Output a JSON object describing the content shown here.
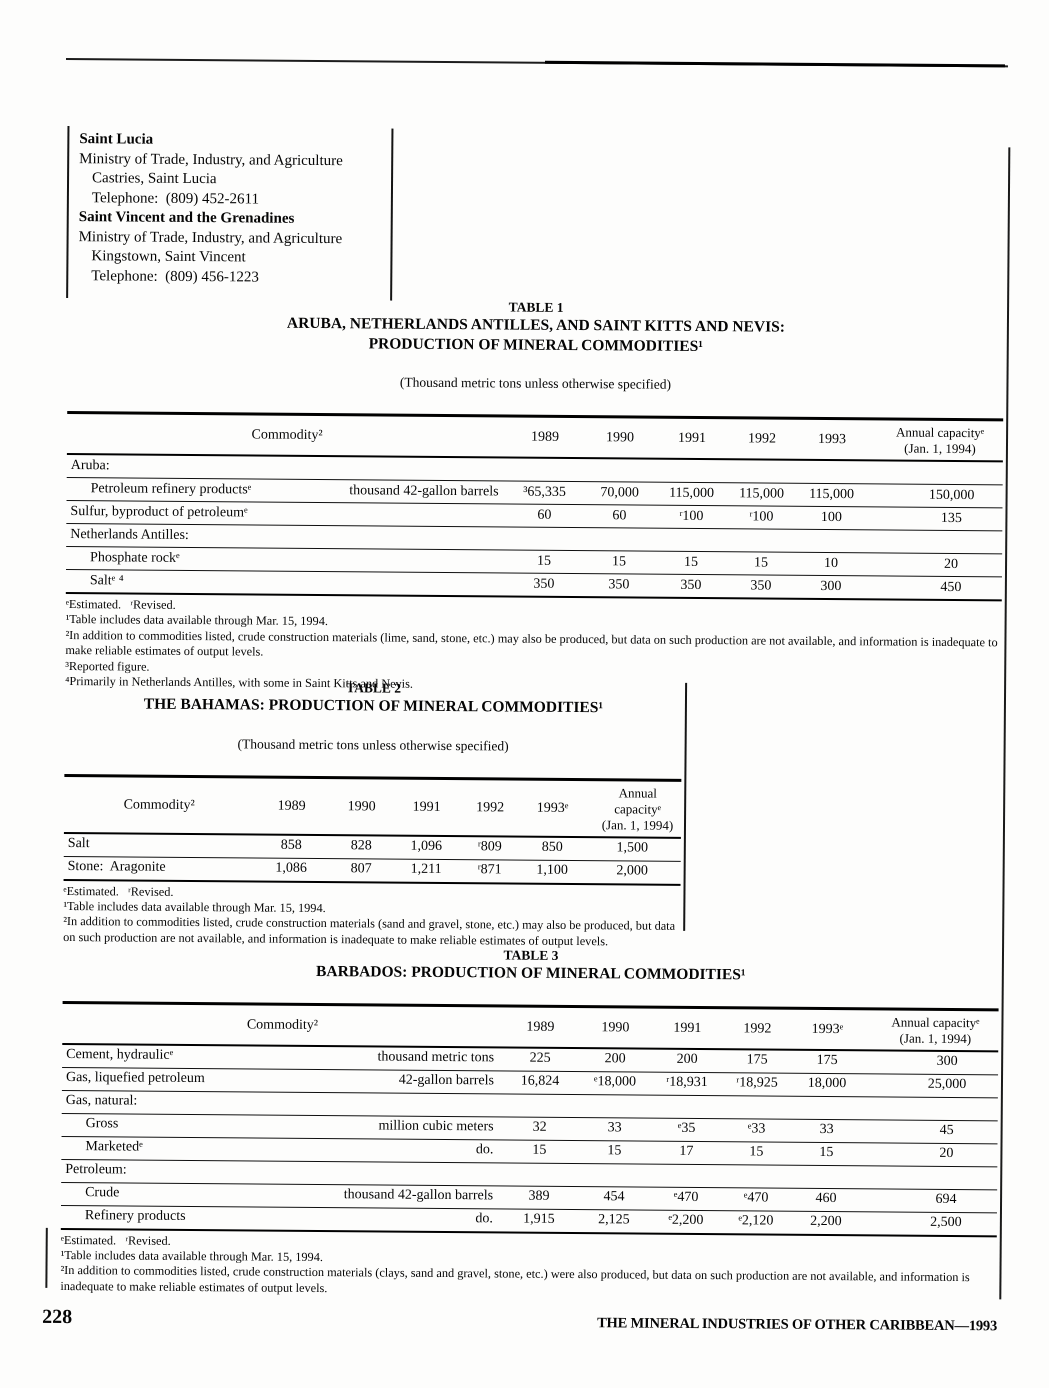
{
  "contacts": {
    "entries": [
      {
        "name": "Saint Lucia",
        "org": "Ministry of Trade, Industry, and Agriculture",
        "addr": "Castries, Saint Lucia",
        "phone": "Telephone:  (809) 452-2611"
      },
      {
        "name": "Saint Vincent and the Grenadines",
        "org": "Ministry of Trade, Industry, and Agriculture",
        "addr": "Kingstown, Saint Vincent",
        "phone": "Telephone:  (809) 456-1223"
      }
    ]
  },
  "table1": {
    "caption": "TABLE 1",
    "title_line1": "ARUBA, NETHERLANDS ANTILLES, AND SAINT KITTS AND NEVIS:",
    "title_line2": "PRODUCTION OF MINERAL COMMODITIES¹",
    "subtitle": "(Thousand metric tons unless otherwise specified)",
    "header": {
      "commodity": "Commodity²",
      "years": [
        "1989",
        "1990",
        "1991",
        "1992",
        "1993"
      ],
      "capacity_line1": "Annual capacityᵉ",
      "capacity_line2": "(Jan. 1, 1994)"
    },
    "rows": [
      {
        "label": "Aruba:",
        "unit": "",
        "values": [
          "",
          "",
          "",
          "",
          "",
          ""
        ]
      },
      {
        "label": "Petroleum refinery productsᵉ",
        "unit": "thousand 42-gallon barrels",
        "values": [
          "³65,335",
          "70,000",
          "115,000",
          "115,000",
          "115,000",
          "150,000"
        ]
      },
      {
        "label": "Sulfur, byproduct of petroleumᵉ",
        "unit": "",
        "values": [
          "60",
          "60",
          "ʳ100",
          "ʳ100",
          "100",
          "135"
        ]
      },
      {
        "label": "Netherlands Antilles:",
        "unit": "",
        "values": [
          "",
          "",
          "",
          "",
          "",
          ""
        ]
      },
      {
        "label": "Phosphate rockᵉ",
        "unit": "",
        "values": [
          "15",
          "15",
          "15",
          "15",
          "10",
          "20"
        ]
      },
      {
        "label": "Saltᵉ ⁴",
        "unit": "",
        "values": [
          "350",
          "350",
          "350",
          "350",
          "300",
          "450"
        ]
      }
    ],
    "footnotes": [
      "ᵉEstimated.   ʳRevised.",
      "¹Table includes data available through Mar. 15, 1994.",
      "²In addition to commodities listed, crude construction materials (lime, sand, stone, etc.) may also be produced, but data on such production are not available, and information is inadequate to make reliable estimates of output levels.",
      "³Reported figure.",
      "⁴Primarily in Netherlands Antilles, with some in Saint Kitts and Nevis."
    ]
  },
  "table2": {
    "caption": "TABLE 2",
    "title_line1": "THE BAHAMAS: PRODUCTION OF MINERAL COMMODITIES¹",
    "subtitle": "(Thousand metric tons unless otherwise specified)",
    "header": {
      "commodity": "Commodity²",
      "years": [
        "1989",
        "1990",
        "1991",
        "1992",
        "1993ᵉ"
      ],
      "capacity_line1": "Annual capacityᵉ",
      "capacity_line2": "(Jan. 1, 1994)"
    },
    "rows": [
      {
        "label": "Salt",
        "values": [
          "858",
          "828",
          "1,096",
          "ʳ809",
          "850",
          "1,500"
        ]
      },
      {
        "label": "Stone:  Aragonite",
        "values": [
          "1,086",
          "807",
          "1,211",
          "ʳ871",
          "1,100",
          "2,000"
        ]
      }
    ],
    "footnotes": [
      "ᵉEstimated.   ʳRevised.",
      "¹Table includes data available through Mar. 15, 1994.",
      "²In addition to commodities listed, crude construction materials (sand and gravel, stone, etc.) may also be produced, but data on such production are not available, and information is inadequate to make reliable estimates of output levels."
    ]
  },
  "table3": {
    "caption": "TABLE 3",
    "title_line1": "BARBADOS:  PRODUCTION OF MINERAL COMMODITIES¹",
    "header": {
      "commodity": "Commodity²",
      "years": [
        "1989",
        "1990",
        "1991",
        "1992",
        "1993ᵉ"
      ],
      "capacity_line1": "Annual capacityᵉ",
      "capacity_line2": "(Jan. 1, 1994)"
    },
    "rows": [
      {
        "label": "Cement, hydraulicᵉ",
        "unit": "thousand metric tons",
        "values": [
          "225",
          "200",
          "200",
          "175",
          "175",
          "300"
        ]
      },
      {
        "label": "Gas, liquefied petroleum",
        "unit": "42-gallon barrels",
        "values": [
          "16,824",
          "ᵉ18,000",
          "ʳ18,931",
          "ʳ18,925",
          "18,000",
          "25,000"
        ]
      },
      {
        "label": "Gas, natural:",
        "unit": "",
        "values": [
          "",
          "",
          "",
          "",
          "",
          ""
        ]
      },
      {
        "label": "Gross",
        "unit": "million cubic meters",
        "values": [
          "32",
          "33",
          "ᵉ35",
          "ᵉ33",
          "33",
          "45"
        ]
      },
      {
        "label": "Marketedᵉ",
        "unit": "do.",
        "values": [
          "15",
          "15",
          "17",
          "15",
          "15",
          "20"
        ]
      },
      {
        "label": "Petroleum:",
        "unit": "",
        "values": [
          "",
          "",
          "",
          "",
          "",
          ""
        ]
      },
      {
        "label": "Crude",
        "unit": "thousand 42-gallon barrels",
        "values": [
          "389",
          "454",
          "ᵉ470",
          "ᵉ470",
          "460",
          "694"
        ]
      },
      {
        "label": "Refinery products",
        "unit": "do.",
        "values": [
          "1,915",
          "2,125",
          "ᵉ2,200",
          "ᵉ2,120",
          "2,200",
          "2,500"
        ]
      }
    ],
    "footnotes": [
      "ᵉEstimated.   ʳRevised.",
      "¹Table includes data available through Mar. 15, 1994.",
      "²In addition to commodities listed, crude construction materials (clays, sand and gravel, stone, etc.) were also produced, but data on such production are not available, and information is inadequate to make reliable estimates of output levels."
    ]
  },
  "footer": {
    "page_number": "228",
    "running_title": "THE MINERAL INDUSTRIES OF OTHER CARIBBEAN—1993"
  }
}
